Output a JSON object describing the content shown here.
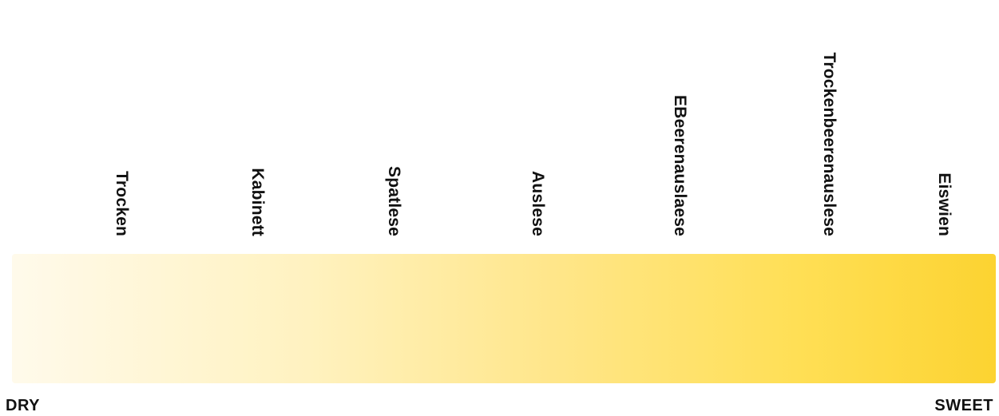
{
  "categories": [
    "Trocken",
    "Kabinett",
    "Spatlese",
    "Auslese",
    "EBeerenauslaese",
    "Trockenbeerenauslese",
    "Eiswien"
  ],
  "scale": {
    "start_label": "DRY",
    "end_label": "SWEET",
    "color_start": "#fffaeb",
    "color_end": "#fcd331"
  }
}
